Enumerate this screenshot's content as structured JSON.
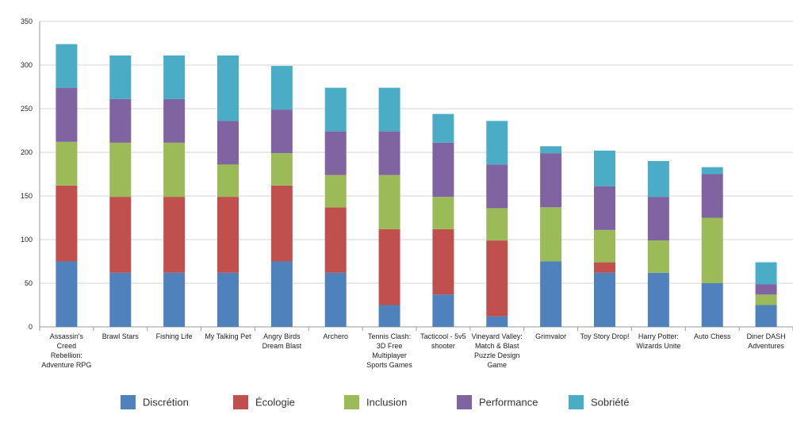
{
  "chart_data": {
    "type": "bar",
    "stacked": true,
    "categories": [
      "Assassin's Creed Rebellion: Adventure RPG",
      "Brawl Stars",
      "Fishing Life",
      "My Talking Pet",
      "Angry Birds Dream Blast",
      "Archero",
      "Tennis Clash: 3D Free Multiplayer Sports Games",
      "Tacticool - 5v5 shooter",
      "Vineyard Valley: Match & Blast Puzzle Design Game",
      "Grimvalor",
      "Toy Story Drop!",
      "Harry Potter: Wizards Unite",
      "Auto Chess",
      "Diner DASH Adventures"
    ],
    "category_lines": [
      [
        "Assassin's",
        "Creed",
        "Rebellion:",
        "Adventure RPG"
      ],
      [
        "Brawl Stars"
      ],
      [
        "Fishing Life"
      ],
      [
        "My Talking Pet"
      ],
      [
        "Angry Birds",
        "Dream Blast"
      ],
      [
        "Archero"
      ],
      [
        "Tennis Clash:",
        "3D Free",
        "Multiplayer",
        "Sports Games"
      ],
      [
        "Tacticool - 5v5",
        "shooter"
      ],
      [
        "Vineyard Valley:",
        "Match & Blast",
        "Puzzle Design",
        "Game"
      ],
      [
        "Grimvalor"
      ],
      [
        "Toy Story Drop!"
      ],
      [
        "Harry Potter:",
        "Wizards Unite"
      ],
      [
        "Auto Chess"
      ],
      [
        "Diner DASH",
        "Adventures"
      ]
    ],
    "series": [
      {
        "name": "Discrétion",
        "color": "#4F81BD",
        "values": [
          75,
          62,
          62,
          62,
          75,
          62,
          25,
          37,
          12,
          75,
          62,
          62,
          50,
          25
        ]
      },
      {
        "name": "Écologie",
        "color": "#C0504D",
        "values": [
          87,
          87,
          87,
          87,
          87,
          75,
          87,
          75,
          87,
          0,
          12,
          0,
          0,
          0
        ]
      },
      {
        "name": "Inclusion",
        "color": "#9BBB59",
        "values": [
          50,
          62,
          62,
          37,
          37,
          37,
          62,
          37,
          37,
          62,
          37,
          37,
          75,
          12
        ]
      },
      {
        "name": "Performance",
        "color": "#8064A2",
        "values": [
          62,
          50,
          50,
          50,
          50,
          50,
          50,
          62,
          50,
          62,
          50,
          50,
          50,
          12
        ]
      },
      {
        "name": "Sobriété",
        "color": "#4BACC6",
        "values": [
          50,
          50,
          50,
          75,
          50,
          50,
          50,
          33,
          50,
          8,
          41,
          41,
          8,
          25
        ]
      }
    ],
    "ylim": [
      0,
      350
    ],
    "yticks": [
      0,
      50,
      100,
      150,
      200,
      250,
      300,
      350
    ],
    "grid": true,
    "legend_position": "bottom"
  }
}
